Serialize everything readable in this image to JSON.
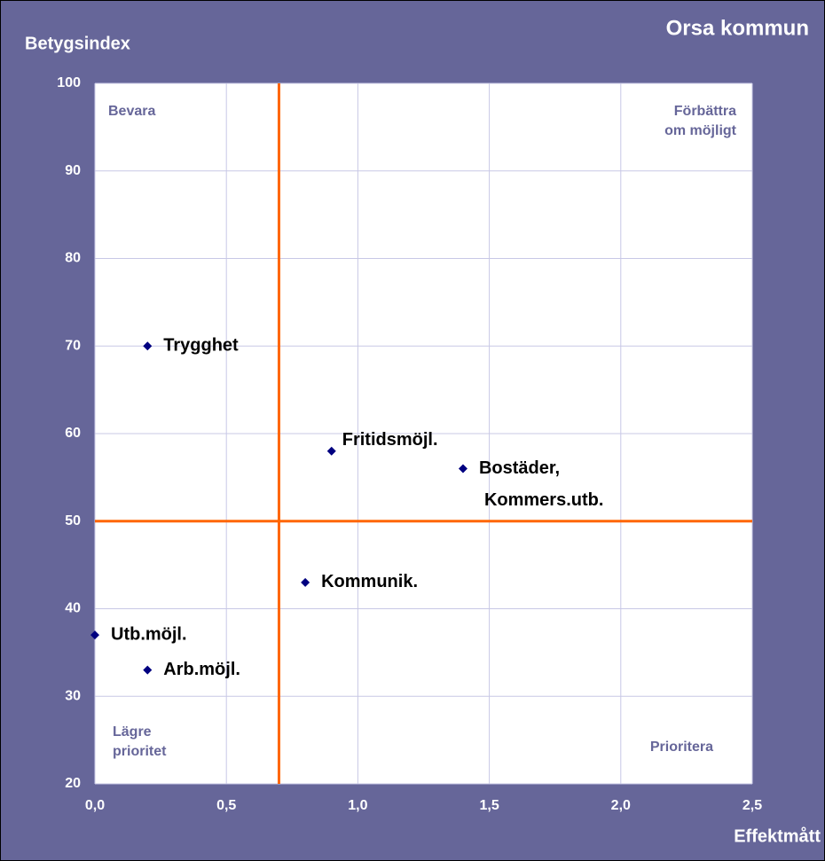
{
  "chart_data": {
    "type": "scatter",
    "title": "Orsa kommun",
    "xlabel": "Effektmått",
    "ylabel": "Betygsindex",
    "x": [
      0.2,
      0.9,
      1.4,
      0.8,
      0,
      0.2
    ],
    "values": [
      70,
      58,
      56,
      43,
      37,
      33
    ],
    "labels": [
      [
        "Trygghet"
      ],
      [
        "Fritidsmöjl."
      ],
      [
        "Bostäder,",
        "Kommers.utb."
      ],
      [
        "Kommunik."
      ],
      [
        "Utb.möjl."
      ],
      [
        "Arb.möjl."
      ]
    ],
    "color": "#000080",
    "xlim": [
      0,
      2.5
    ],
    "ylim": [
      20,
      100
    ],
    "xticks": [
      {
        "value": 0,
        "label": "0,0"
      },
      {
        "value": 0.5,
        "label": "0,5"
      },
      {
        "value": 1,
        "label": "1,0"
      },
      {
        "value": 1.5,
        "label": "1,5"
      },
      {
        "value": 2,
        "label": "2,0"
      },
      {
        "value": 2.5,
        "label": "2,5"
      }
    ],
    "yticks": [
      20,
      30,
      40,
      50,
      60,
      70,
      80,
      90,
      100
    ],
    "grid": true,
    "reference_lines": {
      "x": 0.7,
      "y": 50,
      "color": "#ff6600"
    },
    "quadrants": [
      {
        "corner": "top-left",
        "lines": [
          "Bevara"
        ]
      },
      {
        "corner": "top-right",
        "lines": [
          "Förbättra",
          "om möjligt"
        ]
      },
      {
        "corner": "bottom-left",
        "lines": [
          "Lägre",
          "prioritet"
        ]
      },
      {
        "corner": "bottom-right",
        "lines": [
          "Prioritera"
        ]
      }
    ]
  }
}
